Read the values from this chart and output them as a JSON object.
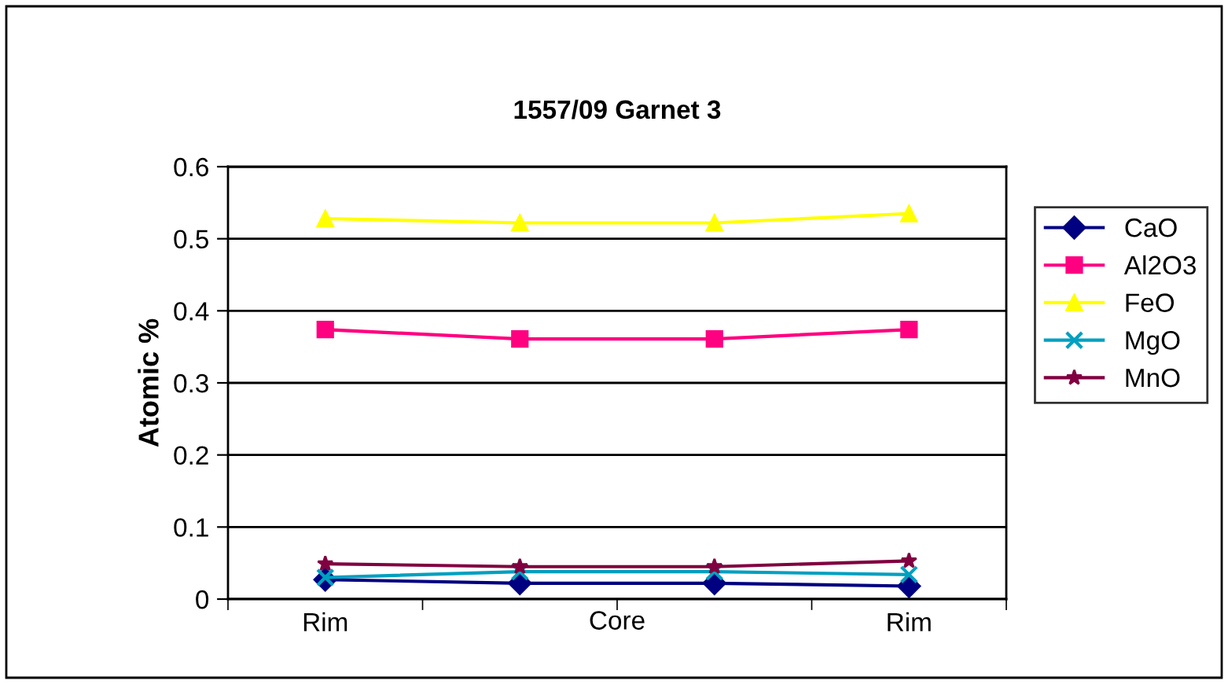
{
  "chart_data": {
    "type": "line",
    "title": "1557/09 Garnet 3",
    "xlabel": "Core",
    "ylabel": "Atomic %",
    "categories": [
      "Rim",
      null,
      null,
      "Rim"
    ],
    "series": [
      {
        "name": "CaO",
        "color": "#000080",
        "marker": "diamond",
        "values": [
          0.027,
          0.022,
          0.022,
          0.018
        ]
      },
      {
        "name": "Al2O3",
        "color": "#ff0080",
        "marker": "square",
        "values": [
          0.374,
          0.361,
          0.361,
          0.374
        ]
      },
      {
        "name": "FeO",
        "color": "#ffff00",
        "marker": "triangle",
        "values": [
          0.528,
          0.522,
          0.522,
          0.535
        ]
      },
      {
        "name": "MgO",
        "color": "#00a0c0",
        "marker": "cross",
        "values": [
          0.03,
          0.038,
          0.038,
          0.034
        ]
      },
      {
        "name": "MnO",
        "color": "#800040",
        "marker": "star",
        "values": [
          0.049,
          0.045,
          0.045,
          0.053
        ]
      }
    ],
    "ylim": [
      0,
      0.6
    ],
    "yticks": [
      0,
      0.1,
      0.2,
      0.3,
      0.4,
      0.5,
      0.6
    ],
    "grid": "y",
    "legend": "right"
  }
}
